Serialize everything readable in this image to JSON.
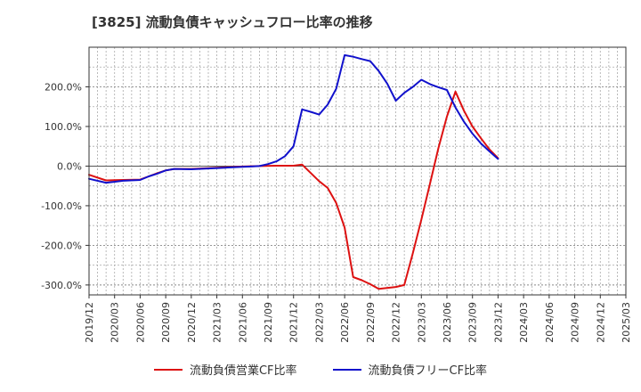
{
  "chart_data": {
    "type": "line",
    "title": "[3825]  流動負債キャッシュフロー比率の推移",
    "xlabel": "",
    "ylabel": "",
    "ylim": [
      -325,
      300
    ],
    "y_ticks": [
      200,
      100,
      0,
      -100,
      -200,
      -300
    ],
    "y_tick_labels": [
      "200.0%",
      "100.0%",
      "0.0%",
      "-100.0%",
      "-200.0%",
      "-300.0%"
    ],
    "x_tick_labels": [
      "2019/12",
      "2020/03",
      "2020/06",
      "2020/09",
      "2020/12",
      "2021/03",
      "2021/06",
      "2021/09",
      "2021/12",
      "2022/03",
      "2022/06",
      "2022/09",
      "2022/12",
      "2023/03",
      "2023/06",
      "2023/09",
      "2023/12",
      "2024/03",
      "2024/06",
      "2024/09",
      "2024/12",
      "2025/03"
    ],
    "grid": true,
    "legend_position": "bottom",
    "series": [
      {
        "name": "流動負債営業CF比率",
        "color": "#dd1111",
        "points": [
          [
            0,
            -22
          ],
          [
            2,
            -36
          ],
          [
            4,
            -35
          ],
          [
            6,
            -34
          ],
          [
            7,
            -26
          ],
          [
            8,
            -18
          ],
          [
            9,
            -11
          ],
          [
            10,
            -7
          ],
          [
            12,
            -7
          ],
          [
            14,
            -5
          ],
          [
            16,
            -3
          ],
          [
            18,
            -1
          ],
          [
            20,
            0
          ],
          [
            22,
            1
          ],
          [
            24,
            1
          ],
          [
            25,
            4
          ],
          [
            27,
            -38
          ],
          [
            28,
            -55
          ],
          [
            29,
            -93
          ],
          [
            30,
            -155
          ],
          [
            31,
            -280
          ],
          [
            32,
            -288
          ],
          [
            33,
            -298
          ],
          [
            34,
            -310
          ],
          [
            36,
            -305
          ],
          [
            37,
            -300
          ],
          [
            38,
            -220
          ],
          [
            39,
            -135
          ],
          [
            40,
            -45
          ],
          [
            41,
            45
          ],
          [
            42,
            125
          ],
          [
            43,
            188
          ],
          [
            44,
            140
          ],
          [
            45,
            100
          ],
          [
            46,
            70
          ],
          [
            47,
            42
          ],
          [
            48,
            20
          ]
        ]
      },
      {
        "name": "流動負債フリーCF比率",
        "color": "#1111cc",
        "points": [
          [
            0,
            -32
          ],
          [
            2,
            -42
          ],
          [
            4,
            -37
          ],
          [
            6,
            -35
          ],
          [
            7,
            -26
          ],
          [
            8,
            -19
          ],
          [
            9,
            -11
          ],
          [
            10,
            -7
          ],
          [
            12,
            -8
          ],
          [
            14,
            -6
          ],
          [
            16,
            -4
          ],
          [
            18,
            -2
          ],
          [
            19,
            -1
          ],
          [
            20,
            0
          ],
          [
            21,
            5
          ],
          [
            22,
            12
          ],
          [
            23,
            25
          ],
          [
            24,
            50
          ],
          [
            25,
            143
          ],
          [
            26,
            137
          ],
          [
            27,
            130
          ],
          [
            28,
            155
          ],
          [
            29,
            195
          ],
          [
            30,
            280
          ],
          [
            31,
            276
          ],
          [
            32,
            270
          ],
          [
            33,
            265
          ],
          [
            34,
            240
          ],
          [
            35,
            208
          ],
          [
            36,
            165
          ],
          [
            37,
            185
          ],
          [
            38,
            200
          ],
          [
            39,
            218
          ],
          [
            40,
            207
          ],
          [
            41,
            199
          ],
          [
            42,
            192
          ],
          [
            43,
            148
          ],
          [
            44,
            112
          ],
          [
            45,
            82
          ],
          [
            46,
            57
          ],
          [
            47,
            37
          ],
          [
            48,
            18
          ]
        ]
      }
    ]
  }
}
